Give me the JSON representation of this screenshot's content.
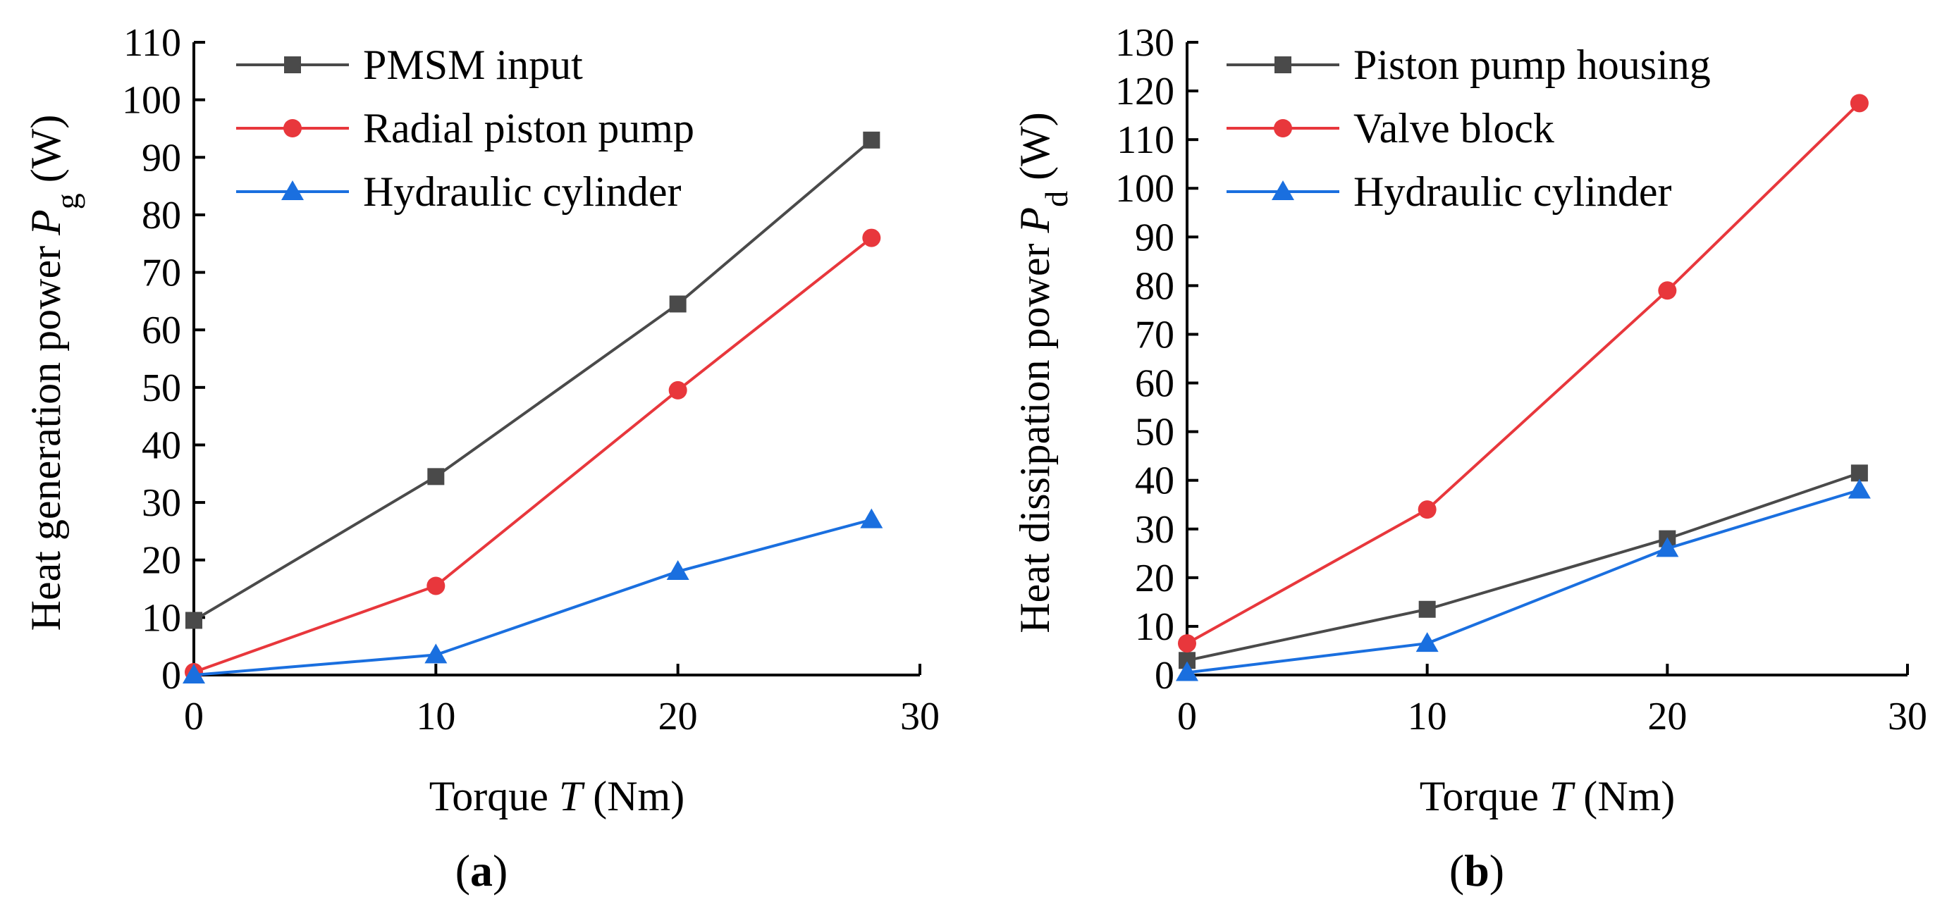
{
  "chart_data": [
    {
      "type": "line",
      "panel": "a",
      "caption": "a",
      "xlabel": "Torque T (Nm)",
      "xlabel_parts": [
        "Torque ",
        "T",
        " (Nm)"
      ],
      "ylabel": "Heat generation power Pg (W)",
      "ylabel_parts": [
        "Heat generation power ",
        "P",
        "g",
        " (W)"
      ],
      "xlim": [
        0,
        30
      ],
      "ylim": [
        0,
        110
      ],
      "xticks": [
        0,
        10,
        20,
        30
      ],
      "yticks": [
        0,
        10,
        20,
        30,
        40,
        50,
        60,
        70,
        80,
        90,
        100,
        110
      ],
      "grid": false,
      "legend": "top-left",
      "x": [
        0,
        10,
        20,
        28
      ],
      "series": [
        {
          "name": "PMSM input",
          "color": "#4a4a4a",
          "marker": "square",
          "values": [
            9.5,
            34.5,
            64.5,
            93
          ]
        },
        {
          "name": "Radial piston pump",
          "color": "#e8373c",
          "marker": "circle",
          "values": [
            0.5,
            15.5,
            49.5,
            76
          ]
        },
        {
          "name": "Hydraulic cylinder",
          "color": "#1a6fdf",
          "marker": "triangle",
          "values": [
            0,
            3.5,
            18,
            27
          ]
        }
      ]
    },
    {
      "type": "line",
      "panel": "b",
      "caption": "b",
      "xlabel": "Torque T (Nm)",
      "xlabel_parts": [
        "Torque ",
        "T",
        " (Nm)"
      ],
      "ylabel": "Heat dissipation power Pd (W)",
      "ylabel_parts": [
        "Heat dissipation power ",
        "P",
        "d",
        " (W)"
      ],
      "xlim": [
        0,
        30
      ],
      "ylim": [
        0,
        130
      ],
      "xticks": [
        0,
        10,
        20,
        30
      ],
      "yticks": [
        0,
        10,
        20,
        30,
        40,
        50,
        60,
        70,
        80,
        90,
        100,
        110,
        120,
        130
      ],
      "grid": false,
      "legend": "top-left",
      "x": [
        0,
        10,
        20,
        28
      ],
      "series": [
        {
          "name": "Piston pump housing",
          "color": "#4a4a4a",
          "marker": "square",
          "values": [
            3,
            13.5,
            28,
            41.5
          ]
        },
        {
          "name": "Valve block",
          "color": "#e8373c",
          "marker": "circle",
          "values": [
            6.5,
            34,
            79,
            117.5
          ]
        },
        {
          "name": "Hydraulic cylinder",
          "color": "#1a6fdf",
          "marker": "triangle",
          "values": [
            0.5,
            6.5,
            26,
            38
          ]
        }
      ]
    }
  ]
}
